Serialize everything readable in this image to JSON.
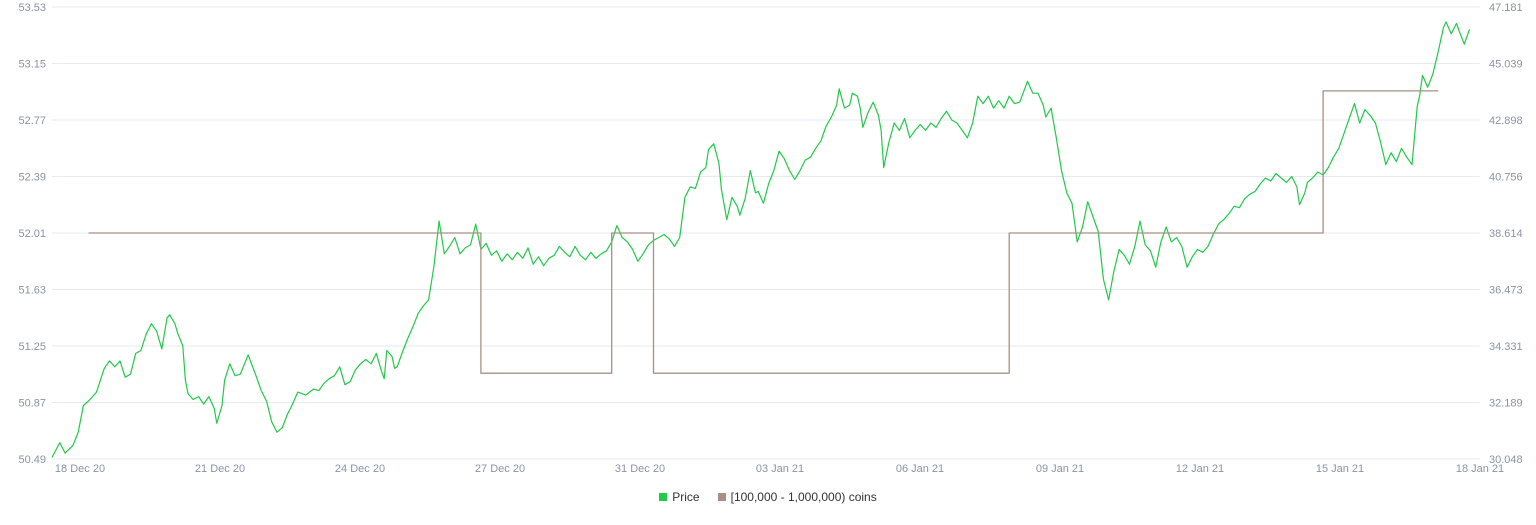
{
  "chart_data": {
    "type": "line",
    "colors": {
      "price": "#22c94a",
      "holders": "#a89184",
      "grid": "#e6e9ef",
      "tick": "#8a93a6"
    },
    "x_axis": {
      "tick_labels": [
        "18 Dec 20",
        "21 Dec 20",
        "24 Dec 20",
        "27 Dec 20",
        "31 Dec 20",
        "03 Jan 21",
        "06 Jan 21",
        "09 Jan 21",
        "12 Jan 21",
        "15 Jan 21",
        "18 Jan 21"
      ]
    },
    "y_left": {
      "min": 50.49,
      "max": 53.53,
      "tick_labels": [
        "53.53",
        "53.15",
        "52.77",
        "52.39",
        "52.01",
        "51.63",
        "51.25",
        "50.87",
        "50.49"
      ]
    },
    "y_right": {
      "min": 30.048,
      "max": 47.181,
      "tick_labels": [
        "47.181",
        "45.039",
        "42.898",
        "40.756",
        "38.614",
        "36.473",
        "34.331",
        "32.189",
        "30.048"
      ]
    },
    "series": [
      {
        "name": "Price",
        "axis": "left",
        "points": [
          [
            0.0,
            50.5
          ],
          [
            0.3,
            50.6
          ],
          [
            0.5,
            50.53
          ],
          [
            0.8,
            50.58
          ],
          [
            1.0,
            50.67
          ],
          [
            1.2,
            50.85
          ],
          [
            1.4,
            50.88
          ],
          [
            1.7,
            50.94
          ],
          [
            2.0,
            51.1
          ],
          [
            2.2,
            51.15
          ],
          [
            2.4,
            51.11
          ],
          [
            2.6,
            51.15
          ],
          [
            2.8,
            51.04
          ],
          [
            3.0,
            51.06
          ],
          [
            3.2,
            51.2
          ],
          [
            3.4,
            51.22
          ],
          [
            3.6,
            51.33
          ],
          [
            3.8,
            51.4
          ],
          [
            4.0,
            51.35
          ],
          [
            4.2,
            51.23
          ],
          [
            4.4,
            51.44
          ],
          [
            4.5,
            51.46
          ],
          [
            4.7,
            51.4
          ],
          [
            4.8,
            51.34
          ],
          [
            5.0,
            51.25
          ],
          [
            5.1,
            51.02
          ],
          [
            5.2,
            50.93
          ],
          [
            5.4,
            50.89
          ],
          [
            5.6,
            50.91
          ],
          [
            5.8,
            50.86
          ],
          [
            6.0,
            50.91
          ],
          [
            6.2,
            50.83
          ],
          [
            6.3,
            50.73
          ],
          [
            6.5,
            50.85
          ],
          [
            6.6,
            51.02
          ],
          [
            6.8,
            51.13
          ],
          [
            7.0,
            51.05
          ],
          [
            7.2,
            51.06
          ],
          [
            7.5,
            51.19
          ],
          [
            7.8,
            51.05
          ],
          [
            8.0,
            50.95
          ],
          [
            8.2,
            50.88
          ],
          [
            8.4,
            50.74
          ],
          [
            8.6,
            50.67
          ],
          [
            8.8,
            50.7
          ],
          [
            9.0,
            50.79
          ],
          [
            9.2,
            50.86
          ],
          [
            9.4,
            50.94
          ],
          [
            9.7,
            50.92
          ],
          [
            10.0,
            50.96
          ],
          [
            10.2,
            50.95
          ],
          [
            10.4,
            51.0
          ],
          [
            10.6,
            51.03
          ],
          [
            10.8,
            51.05
          ],
          [
            11.0,
            51.11
          ],
          [
            11.2,
            50.99
          ],
          [
            11.4,
            51.01
          ],
          [
            11.6,
            51.09
          ],
          [
            11.8,
            51.13
          ],
          [
            12.0,
            51.16
          ],
          [
            12.2,
            51.13
          ],
          [
            12.4,
            51.2
          ],
          [
            12.6,
            51.08
          ],
          [
            12.7,
            51.03
          ],
          [
            12.8,
            51.22
          ],
          [
            13.0,
            51.18
          ],
          [
            13.1,
            51.1
          ],
          [
            13.2,
            51.11
          ],
          [
            13.4,
            51.21
          ],
          [
            13.6,
            51.3
          ],
          [
            13.8,
            51.38
          ],
          [
            14.0,
            51.47
          ],
          [
            14.2,
            51.52
          ],
          [
            14.4,
            51.56
          ],
          [
            14.6,
            51.78
          ],
          [
            14.8,
            52.09
          ],
          [
            15.0,
            51.87
          ],
          [
            15.2,
            51.92
          ],
          [
            15.4,
            51.98
          ],
          [
            15.6,
            51.87
          ],
          [
            15.8,
            51.91
          ],
          [
            16.0,
            51.93
          ],
          [
            16.2,
            52.07
          ],
          [
            16.4,
            51.9
          ],
          [
            16.6,
            51.94
          ],
          [
            16.8,
            51.86
          ],
          [
            17.0,
            51.89
          ],
          [
            17.2,
            51.82
          ],
          [
            17.4,
            51.87
          ],
          [
            17.6,
            51.83
          ],
          [
            17.8,
            51.88
          ],
          [
            18.0,
            51.84
          ],
          [
            18.2,
            51.91
          ],
          [
            18.4,
            51.8
          ],
          [
            18.6,
            51.85
          ],
          [
            18.8,
            51.79
          ],
          [
            19.0,
            51.84
          ],
          [
            19.2,
            51.86
          ],
          [
            19.4,
            51.92
          ],
          [
            19.6,
            51.88
          ],
          [
            19.8,
            51.85
          ],
          [
            20.0,
            51.92
          ],
          [
            20.2,
            51.86
          ],
          [
            20.4,
            51.83
          ],
          [
            20.6,
            51.88
          ],
          [
            20.8,
            51.84
          ],
          [
            21.0,
            51.87
          ],
          [
            21.2,
            51.89
          ],
          [
            21.4,
            51.95
          ],
          [
            21.6,
            52.06
          ],
          [
            21.8,
            51.98
          ],
          [
            22.0,
            51.95
          ],
          [
            22.2,
            51.9
          ],
          [
            22.4,
            51.82
          ],
          [
            22.6,
            51.87
          ],
          [
            22.8,
            51.93
          ],
          [
            23.0,
            51.96
          ],
          [
            23.2,
            51.98
          ],
          [
            23.4,
            52.0
          ],
          [
            23.6,
            51.97
          ],
          [
            23.8,
            51.92
          ],
          [
            24.0,
            51.98
          ],
          [
            24.2,
            52.25
          ],
          [
            24.4,
            52.32
          ],
          [
            24.6,
            52.31
          ],
          [
            24.8,
            52.42
          ],
          [
            25.0,
            52.45
          ],
          [
            25.1,
            52.57
          ],
          [
            25.3,
            52.61
          ],
          [
            25.5,
            52.48
          ],
          [
            25.6,
            52.3
          ],
          [
            25.8,
            52.1
          ],
          [
            26.0,
            52.25
          ],
          [
            26.2,
            52.19
          ],
          [
            26.3,
            52.13
          ],
          [
            26.5,
            52.24
          ],
          [
            26.7,
            52.43
          ],
          [
            26.9,
            52.28
          ],
          [
            27.0,
            52.29
          ],
          [
            27.2,
            52.21
          ],
          [
            27.4,
            52.34
          ],
          [
            27.6,
            52.43
          ],
          [
            27.8,
            52.56
          ],
          [
            28.0,
            52.51
          ],
          [
            28.2,
            52.43
          ],
          [
            28.4,
            52.37
          ],
          [
            28.6,
            52.43
          ],
          [
            28.8,
            52.5
          ],
          [
            29.0,
            52.52
          ],
          [
            29.2,
            52.58
          ],
          [
            29.4,
            52.63
          ],
          [
            29.6,
            52.73
          ],
          [
            29.8,
            52.79
          ],
          [
            30.0,
            52.87
          ],
          [
            30.1,
            52.98
          ],
          [
            30.3,
            52.85
          ],
          [
            30.5,
            52.87
          ],
          [
            30.6,
            52.95
          ],
          [
            30.8,
            52.93
          ],
          [
            30.9,
            52.85
          ],
          [
            31.0,
            52.72
          ],
          [
            31.2,
            52.82
          ],
          [
            31.4,
            52.89
          ],
          [
            31.6,
            52.8
          ],
          [
            31.7,
            52.7
          ],
          [
            31.8,
            52.45
          ],
          [
            32.0,
            52.62
          ],
          [
            32.2,
            52.75
          ],
          [
            32.4,
            52.7
          ],
          [
            32.6,
            52.78
          ],
          [
            32.8,
            52.65
          ],
          [
            33.0,
            52.7
          ],
          [
            33.2,
            52.74
          ],
          [
            33.4,
            52.7
          ],
          [
            33.6,
            52.75
          ],
          [
            33.8,
            52.72
          ],
          [
            34.0,
            52.78
          ],
          [
            34.2,
            52.83
          ],
          [
            34.4,
            52.77
          ],
          [
            34.6,
            52.75
          ],
          [
            34.8,
            52.7
          ],
          [
            35.0,
            52.65
          ],
          [
            35.2,
            52.75
          ],
          [
            35.4,
            52.93
          ],
          [
            35.6,
            52.88
          ],
          [
            35.8,
            52.93
          ],
          [
            36.0,
            52.85
          ],
          [
            36.2,
            52.9
          ],
          [
            36.4,
            52.85
          ],
          [
            36.6,
            52.93
          ],
          [
            36.8,
            52.88
          ],
          [
            37.0,
            52.89
          ],
          [
            37.3,
            53.03
          ],
          [
            37.5,
            52.95
          ],
          [
            37.7,
            52.95
          ],
          [
            37.9,
            52.87
          ],
          [
            38.0,
            52.79
          ],
          [
            38.2,
            52.85
          ],
          [
            38.4,
            52.65
          ],
          [
            38.6,
            52.43
          ],
          [
            38.8,
            52.28
          ],
          [
            39.0,
            52.21
          ],
          [
            39.2,
            51.95
          ],
          [
            39.4,
            52.05
          ],
          [
            39.6,
            52.22
          ],
          [
            39.8,
            52.12
          ],
          [
            40.0,
            52.02
          ],
          [
            40.2,
            51.7
          ],
          [
            40.4,
            51.56
          ],
          [
            40.6,
            51.75
          ],
          [
            40.8,
            51.9
          ],
          [
            41.0,
            51.86
          ],
          [
            41.2,
            51.8
          ],
          [
            41.4,
            51.92
          ],
          [
            41.6,
            52.09
          ],
          [
            41.8,
            51.93
          ],
          [
            42.0,
            51.89
          ],
          [
            42.2,
            51.78
          ],
          [
            42.4,
            51.95
          ],
          [
            42.6,
            52.05
          ],
          [
            42.8,
            51.95
          ],
          [
            43.0,
            51.98
          ],
          [
            43.2,
            51.92
          ],
          [
            43.4,
            51.78
          ],
          [
            43.6,
            51.85
          ],
          [
            43.8,
            51.9
          ],
          [
            44.0,
            51.88
          ],
          [
            44.2,
            51.92
          ],
          [
            44.4,
            52.0
          ],
          [
            44.6,
            52.07
          ],
          [
            44.8,
            52.1
          ],
          [
            45.0,
            52.14
          ],
          [
            45.2,
            52.19
          ],
          [
            45.4,
            52.18
          ],
          [
            45.6,
            52.24
          ],
          [
            45.8,
            52.27
          ],
          [
            46.0,
            52.29
          ],
          [
            46.2,
            52.34
          ],
          [
            46.4,
            52.38
          ],
          [
            46.6,
            52.36
          ],
          [
            46.8,
            52.41
          ],
          [
            47.0,
            52.38
          ],
          [
            47.2,
            52.35
          ],
          [
            47.4,
            52.39
          ],
          [
            47.6,
            52.32
          ],
          [
            47.7,
            52.2
          ],
          [
            47.9,
            52.28
          ],
          [
            48.0,
            52.35
          ],
          [
            48.2,
            52.38
          ],
          [
            48.4,
            52.42
          ],
          [
            48.6,
            52.4
          ],
          [
            48.8,
            52.45
          ],
          [
            49.0,
            52.52
          ],
          [
            49.2,
            52.58
          ],
          [
            49.4,
            52.68
          ],
          [
            49.6,
            52.78
          ],
          [
            49.8,
            52.88
          ],
          [
            50.0,
            52.75
          ],
          [
            50.2,
            52.84
          ],
          [
            50.4,
            52.8
          ],
          [
            50.6,
            52.75
          ],
          [
            50.8,
            52.62
          ],
          [
            51.0,
            52.47
          ],
          [
            51.2,
            52.55
          ],
          [
            51.4,
            52.49
          ],
          [
            51.6,
            52.58
          ],
          [
            51.8,
            52.52
          ],
          [
            52.0,
            52.47
          ],
          [
            52.2,
            52.86
          ],
          [
            52.3,
            52.94
          ],
          [
            52.4,
            53.07
          ],
          [
            52.6,
            52.99
          ],
          [
            52.8,
            53.08
          ],
          [
            53.0,
            53.23
          ],
          [
            53.2,
            53.39
          ],
          [
            53.3,
            53.43
          ],
          [
            53.5,
            53.35
          ],
          [
            53.7,
            53.42
          ],
          [
            53.8,
            53.37
          ],
          [
            54.0,
            53.28
          ],
          [
            54.2,
            53.38
          ]
        ]
      },
      {
        "name": "[100,000  - 1,000,000) coins",
        "axis": "right",
        "points": [
          [
            1.4,
            38.614
          ],
          [
            16.4,
            38.614
          ],
          [
            16.4,
            33.3
          ],
          [
            21.4,
            33.3
          ],
          [
            21.4,
            38.614
          ],
          [
            23.0,
            38.614
          ],
          [
            23.0,
            33.3
          ],
          [
            36.6,
            33.3
          ],
          [
            36.6,
            38.614
          ],
          [
            48.6,
            38.614
          ],
          [
            48.6,
            44.0
          ],
          [
            53.0,
            44.0
          ]
        ]
      }
    ],
    "x_range": [
      0,
      54.6
    ]
  }
}
